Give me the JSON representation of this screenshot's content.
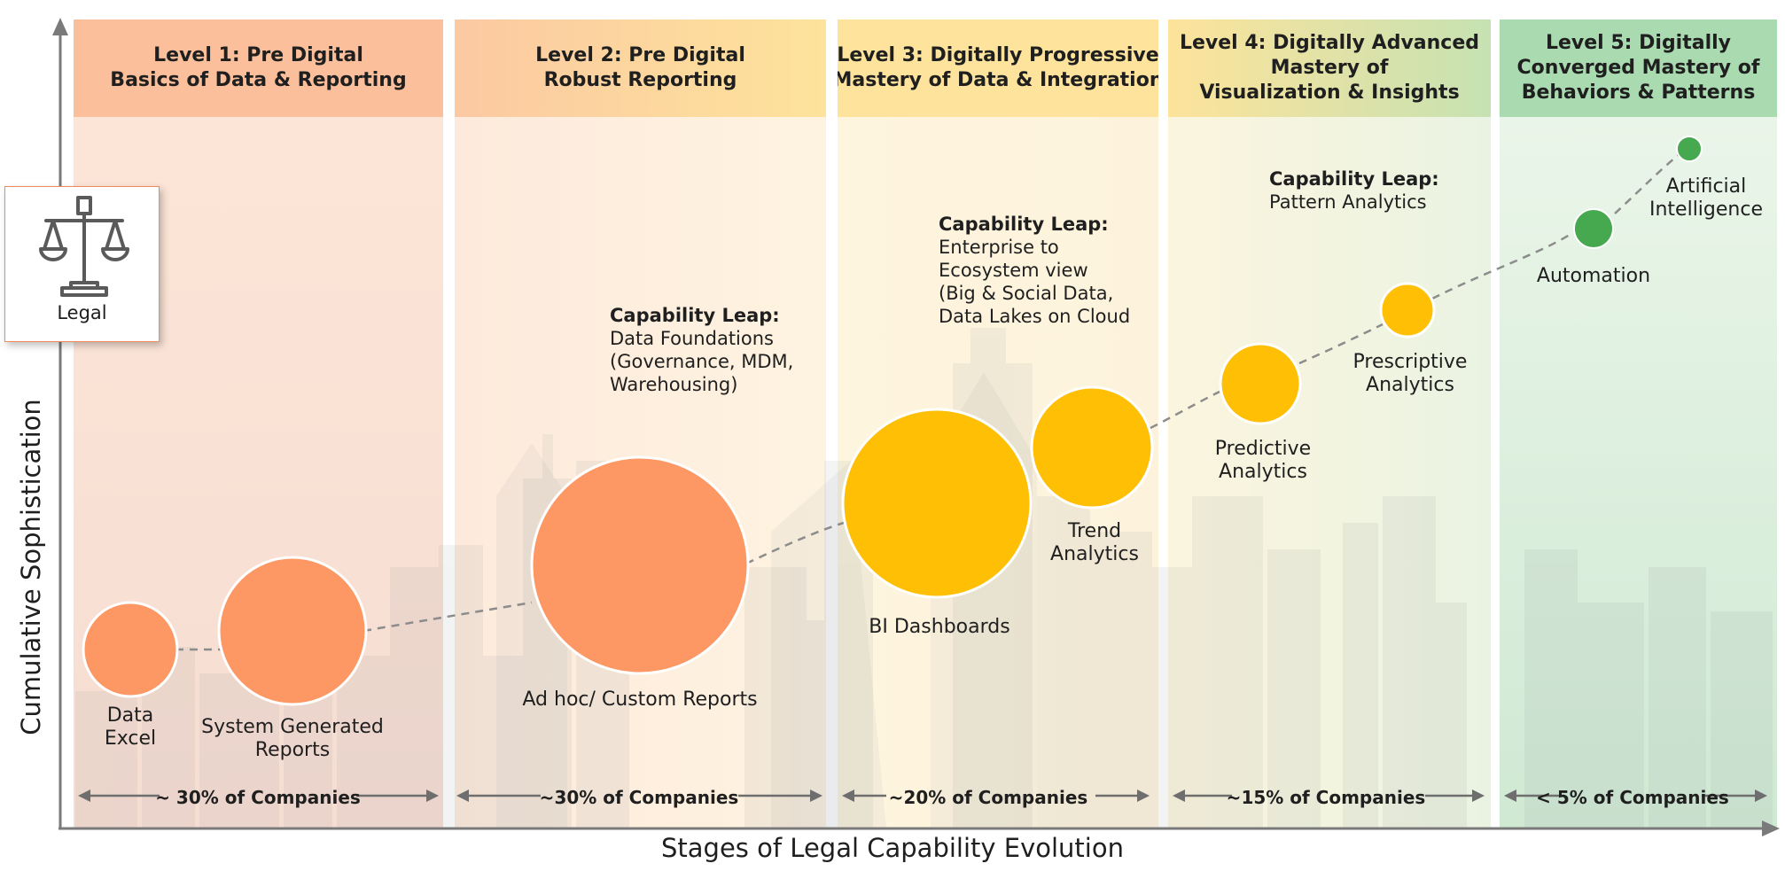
{
  "axes": {
    "x_title": "Stages of Legal Capability Evolution",
    "y_title": "Cumulative Sophistication"
  },
  "legal_card": {
    "label": "Legal",
    "icon": "scales-of-justice-icon"
  },
  "colors": {
    "orange": "#fd9763",
    "amber": "#ffbf05",
    "green": "#46a84f",
    "header_level1": "#fbbf9b",
    "header_level5": "#a9dab0"
  },
  "levels": [
    {
      "title_1": "Level 1: Pre Digital",
      "title_2": "Basics of Data & Reporting",
      "title_3": "",
      "share": "~ 30% of Companies"
    },
    {
      "title_1": "Level 2: Pre Digital",
      "title_2": "Robust Reporting",
      "title_3": "",
      "share": "~30% of Companies"
    },
    {
      "title_1": "Level 3: Digitally Progressive",
      "title_2": "Mastery of Data & Integration",
      "title_3": "",
      "share": "~20% of Companies"
    },
    {
      "title_1": "Level 4: Digitally Advanced",
      "title_2": "Mastery of",
      "title_3": "Visualization & Insights",
      "share": "~15% of Companies"
    },
    {
      "title_1": "Level 5: Digitally",
      "title_2": "Converged Mastery of",
      "title_3": "Behaviors & Patterns",
      "share": "< 5% of Companies"
    }
  ],
  "capabilities": [
    {
      "line_1": "Data",
      "line_2": "Excel",
      "color": "orange"
    },
    {
      "line_1": "System Generated",
      "line_2": "Reports",
      "color": "orange"
    },
    {
      "line_1": "Ad hoc/ Custom Reports",
      "line_2": "",
      "color": "orange"
    },
    {
      "line_1": "BI Dashboards",
      "line_2": "",
      "color": "amber"
    },
    {
      "line_1": "Trend",
      "line_2": "Analytics",
      "color": "amber"
    },
    {
      "line_1": "Predictive",
      "line_2": "Analytics",
      "color": "amber"
    },
    {
      "line_1": "Prescriptive",
      "line_2": "Analytics",
      "color": "amber"
    },
    {
      "line_1": "Automation",
      "line_2": "",
      "color": "green"
    },
    {
      "line_1": "Artificial",
      "line_2": "Intelligence",
      "color": "green"
    }
  ],
  "capability_leaps": [
    {
      "title": "Capability Leap:",
      "line_1": "Data Foundations",
      "line_2": "(Governance, MDM,",
      "line_3": "Warehousing)"
    },
    {
      "title": "Capability Leap:",
      "line_1": "Enterprise to",
      "line_2": "Ecosystem view",
      "line_3": "(Big & Social Data,",
      "line_4": "Data Lakes on Cloud"
    },
    {
      "title": "Capability Leap:",
      "line_1": "Pattern Analytics"
    }
  ]
}
